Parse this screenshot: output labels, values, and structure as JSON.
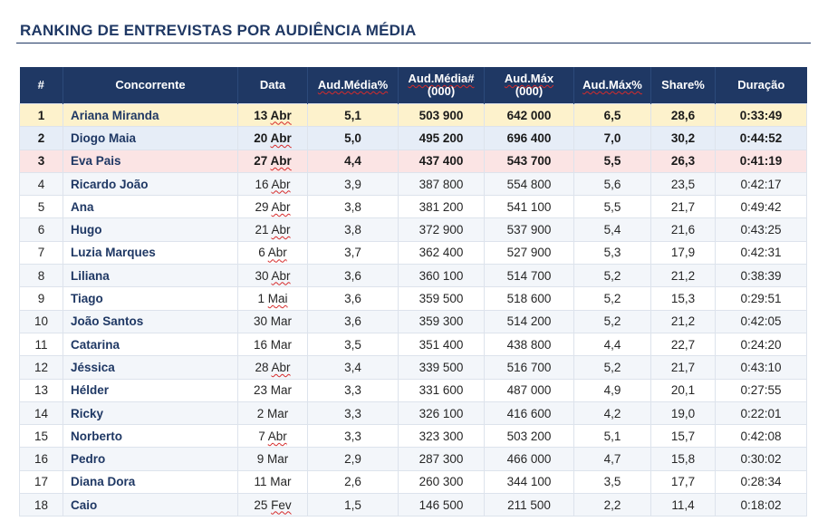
{
  "title": "RANKING DE ENTREVISTAS POR AUDIÊNCIA MÉDIA",
  "columns": {
    "rank": "#",
    "contestant": "Concorrente",
    "date": "Data",
    "aud_pct": "Aud.Média%",
    "aud_abs_1": "Aud.Média#",
    "aud_abs_2": "(000)",
    "aud_max_1": "Aud.Máx",
    "aud_max_2": "(000)",
    "aud_max_pct": "Aud.Máx%",
    "share": "Share%",
    "duration": "Duração"
  },
  "rows": [
    {
      "rank": "1",
      "name": "Ariana Miranda",
      "date_day": "13",
      "date_month": "Abr",
      "aud_pct": "5,1",
      "aud_abs": "503 900",
      "aud_max": "642 000",
      "aud_max_pct": "6,5",
      "share": "28,6",
      "duration": "0:33:49"
    },
    {
      "rank": "2",
      "name": "Diogo Maia",
      "date_day": "20",
      "date_month": "Abr",
      "aud_pct": "5,0",
      "aud_abs": "495 200",
      "aud_max": "696 400",
      "aud_max_pct": "7,0",
      "share": "30,2",
      "duration": "0:44:52"
    },
    {
      "rank": "3",
      "name": "Eva Pais",
      "date_day": "27",
      "date_month": "Abr",
      "aud_pct": "4,4",
      "aud_abs": "437 400",
      "aud_max": "543 700",
      "aud_max_pct": "5,5",
      "share": "26,3",
      "duration": "0:41:19"
    },
    {
      "rank": "4",
      "name": "Ricardo João",
      "date_day": "16",
      "date_month": "Abr",
      "aud_pct": "3,9",
      "aud_abs": "387 800",
      "aud_max": "554 800",
      "aud_max_pct": "5,6",
      "share": "23,5",
      "duration": "0:42:17"
    },
    {
      "rank": "5",
      "name": "Ana",
      "date_day": "29",
      "date_month": "Abr",
      "aud_pct": "3,8",
      "aud_abs": "381 200",
      "aud_max": "541 100",
      "aud_max_pct": "5,5",
      "share": "21,7",
      "duration": "0:49:42"
    },
    {
      "rank": "6",
      "name": "Hugo",
      "date_day": "21",
      "date_month": "Abr",
      "aud_pct": "3,8",
      "aud_abs": "372 900",
      "aud_max": "537 900",
      "aud_max_pct": "5,4",
      "share": "21,6",
      "duration": "0:43:25"
    },
    {
      "rank": "7",
      "name": "Luzia Marques",
      "date_day": "6",
      "date_month": "Abr",
      "aud_pct": "3,7",
      "aud_abs": "362 400",
      "aud_max": "527 900",
      "aud_max_pct": "5,3",
      "share": "17,9",
      "duration": "0:42:31"
    },
    {
      "rank": "8",
      "name": "Liliana",
      "date_day": "30",
      "date_month": "Abr",
      "aud_pct": "3,6",
      "aud_abs": "360 100",
      "aud_max": "514 700",
      "aud_max_pct": "5,2",
      "share": "21,2",
      "duration": "0:38:39"
    },
    {
      "rank": "9",
      "name": "Tiago",
      "date_day": "1",
      "date_month": "Mai",
      "aud_pct": "3,6",
      "aud_abs": "359 500",
      "aud_max": "518 600",
      "aud_max_pct": "5,2",
      "share": "15,3",
      "duration": "0:29:51"
    },
    {
      "rank": "10",
      "name": "João Santos",
      "date_day": "30",
      "date_month": "Mar",
      "aud_pct": "3,6",
      "aud_abs": "359 300",
      "aud_max": "514 200",
      "aud_max_pct": "5,2",
      "share": "21,2",
      "duration": "0:42:05"
    },
    {
      "rank": "11",
      "name": "Catarina",
      "date_day": "16",
      "date_month": "Mar",
      "aud_pct": "3,5",
      "aud_abs": "351 400",
      "aud_max": "438 800",
      "aud_max_pct": "4,4",
      "share": "22,7",
      "duration": "0:24:20"
    },
    {
      "rank": "12",
      "name": "Jéssica",
      "date_day": "28",
      "date_month": "Abr",
      "aud_pct": "3,4",
      "aud_abs": "339 500",
      "aud_max": "516 700",
      "aud_max_pct": "5,2",
      "share": "21,7",
      "duration": "0:43:10"
    },
    {
      "rank": "13",
      "name": "Hélder",
      "date_day": "23",
      "date_month": "Mar",
      "aud_pct": "3,3",
      "aud_abs": "331 600",
      "aud_max": "487 000",
      "aud_max_pct": "4,9",
      "share": "20,1",
      "duration": "0:27:55"
    },
    {
      "rank": "14",
      "name": "Ricky",
      "date_day": "2",
      "date_month": "Mar",
      "aud_pct": "3,3",
      "aud_abs": "326 100",
      "aud_max": "416 600",
      "aud_max_pct": "4,2",
      "share": "19,0",
      "duration": "0:22:01"
    },
    {
      "rank": "15",
      "name": "Norberto",
      "date_day": "7",
      "date_month": "Abr",
      "aud_pct": "3,3",
      "aud_abs": "323 300",
      "aud_max": "503 200",
      "aud_max_pct": "5,1",
      "share": "15,7",
      "duration": "0:42:08"
    },
    {
      "rank": "16",
      "name": "Pedro",
      "date_day": "9",
      "date_month": "Mar",
      "aud_pct": "2,9",
      "aud_abs": "287 300",
      "aud_max": "466 000",
      "aud_max_pct": "4,7",
      "share": "15,8",
      "duration": "0:30:02"
    },
    {
      "rank": "17",
      "name": "Diana Dora",
      "date_day": "11",
      "date_month": "Mar",
      "aud_pct": "2,6",
      "aud_abs": "260 300",
      "aud_max": "344 100",
      "aud_max_pct": "3,5",
      "share": "17,7",
      "duration": "0:28:34"
    },
    {
      "rank": "18",
      "name": "Caio",
      "date_day": "25",
      "date_month": "Fev",
      "aud_pct": "1,5",
      "aud_abs": "146 500",
      "aud_max": "211 500",
      "aud_max_pct": "2,2",
      "share": "11,4",
      "duration": "0:18:02"
    }
  ],
  "colors": {
    "header_bg": "#1f3864",
    "rank1_bg": "#fdf2cc",
    "rank2_bg": "#e6edf7",
    "rank3_bg": "#fbe4e4",
    "spellcheck_underline": "#d62b2b"
  }
}
